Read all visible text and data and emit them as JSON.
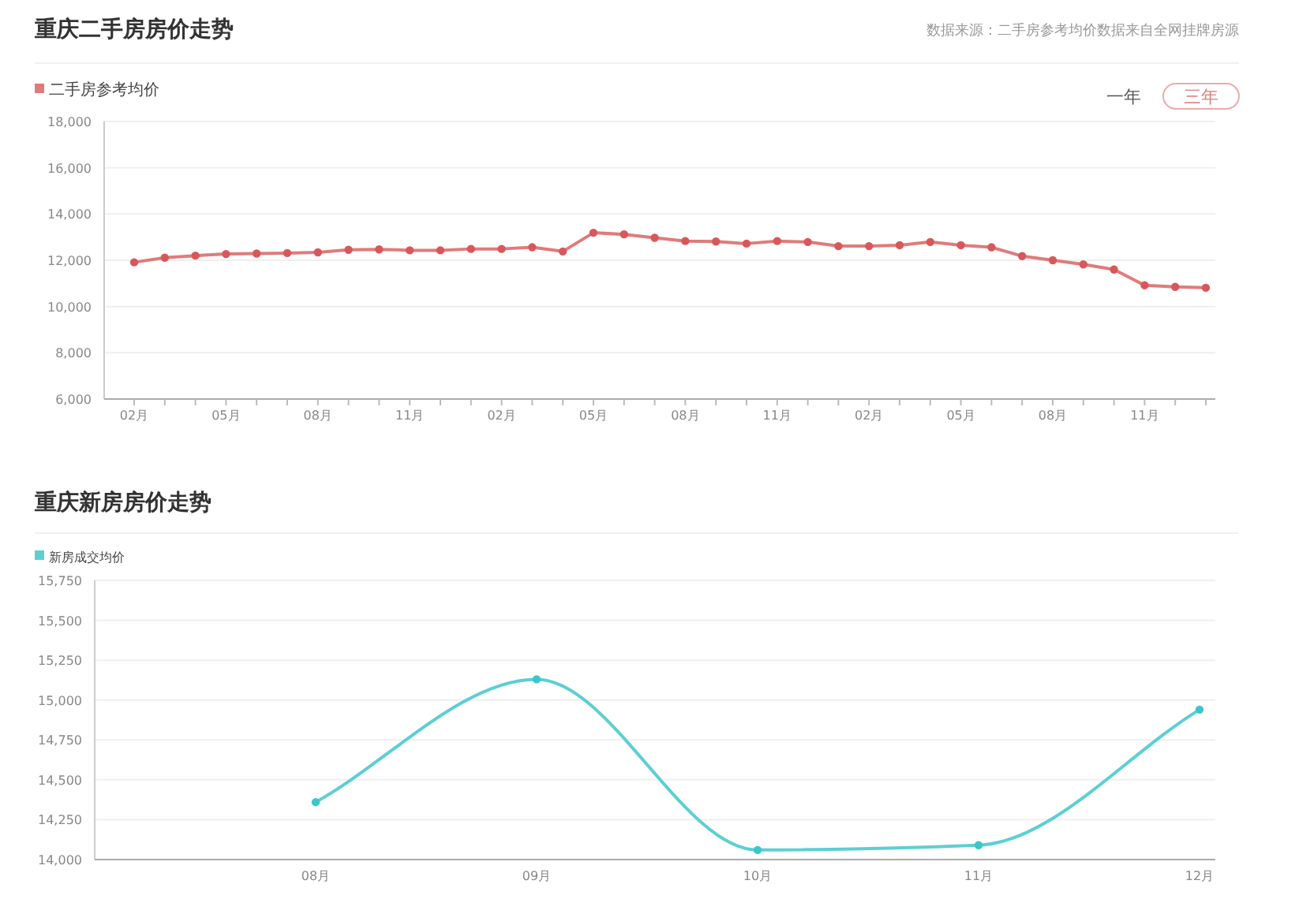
{
  "chart_data": [
    {
      "type": "line",
      "title": "重庆二手房房价走势",
      "annotations": [
        "数据来源：二手房参考均价数据来自全网挂牌房源",
        "一年",
        "三年"
      ],
      "categories": [
        "02月",
        null,
        null,
        "05月",
        null,
        null,
        "08月",
        null,
        null,
        "11月",
        null,
        null,
        "02月",
        null,
        null,
        "05月",
        null,
        null,
        "08月",
        null,
        null,
        "11月",
        null,
        null,
        "02月",
        null,
        null,
        "05月",
        null,
        null,
        "08月",
        null,
        null,
        "11月",
        null,
        null
      ],
      "series": [
        {
          "name": "二手房参考均价",
          "color": "#e07b7b",
          "values": [
            11910,
            12110,
            12200,
            12270,
            12290,
            12310,
            12340,
            12450,
            12470,
            12430,
            12430,
            12490,
            12490,
            12560,
            12380,
            13190,
            13120,
            12970,
            12830,
            12810,
            12720,
            12830,
            12790,
            12610,
            12610,
            12650,
            12790,
            12650,
            12560,
            12180,
            12000,
            11820,
            11600,
            10920,
            10850,
            10810
          ]
        }
      ],
      "ylim": [
        6000,
        18000
      ],
      "yticks": [
        {
          "value": 6000,
          "label": "6,000"
        },
        {
          "value": 8000,
          "label": "8,000"
        },
        {
          "value": 10000,
          "label": "10,000"
        },
        {
          "value": 12000,
          "label": "12,000"
        },
        {
          "value": 14000,
          "label": "14,000"
        },
        {
          "value": 16000,
          "label": "16,000"
        },
        {
          "value": 18000,
          "label": "18,000"
        }
      ],
      "grid": "y",
      "legend": "top left",
      "marker": "circle",
      "line_style": "solid"
    },
    {
      "type": "line",
      "title": "重庆新房房价走势",
      "categories": [
        null,
        "08月",
        "09月",
        "10月",
        "11月",
        "12月"
      ],
      "series": [
        {
          "name": "新房成交均价",
          "color": "#5ccfd3",
          "values": [
            null,
            14360,
            15130,
            14060,
            14090,
            14940
          ]
        }
      ],
      "ylim": [
        14000,
        15750
      ],
      "yticks": [
        {
          "value": 14000,
          "label": "14,000"
        },
        {
          "value": 14250,
          "label": "14,250"
        },
        {
          "value": 14500,
          "label": "14,500"
        },
        {
          "value": 14750,
          "label": "14,750"
        },
        {
          "value": 15000,
          "label": "15,000"
        },
        {
          "value": 15250,
          "label": "15,250"
        },
        {
          "value": 15500,
          "label": "15,500"
        },
        {
          "value": 15750,
          "label": "15,750"
        }
      ],
      "grid": "y",
      "legend": "top left",
      "marker": "circle",
      "line_style": "solid"
    }
  ]
}
